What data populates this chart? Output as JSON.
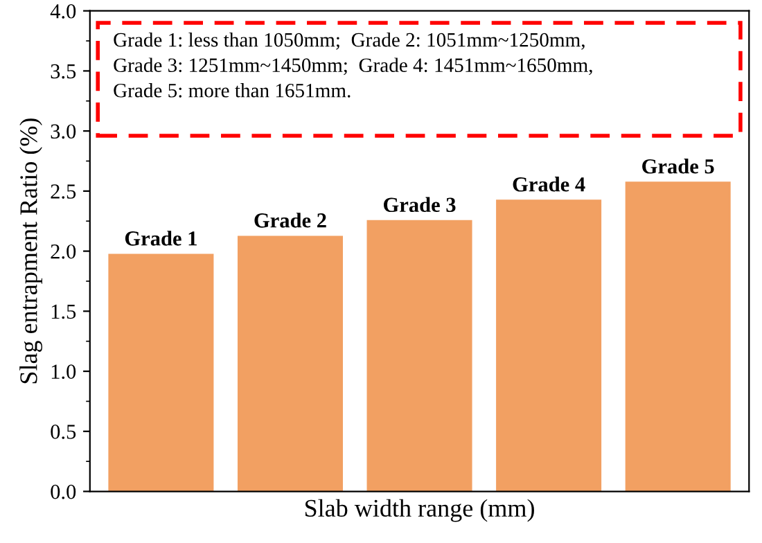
{
  "chart_data": {
    "type": "bar",
    "xlabel": "Slab width range (mm)",
    "ylabel": "Slag entrapment Ratio (%)",
    "categories": [
      "Grade 1",
      "Grade 2",
      "Grade 3",
      "Grade 4",
      "Grade 5"
    ],
    "values": [
      1.97,
      2.12,
      2.25,
      2.42,
      2.57
    ],
    "color": "#f2a062",
    "ylim": [
      0,
      4.0
    ],
    "yticks": [
      {
        "value": 0,
        "label": "0.0"
      },
      0.5,
      {
        "value": 1,
        "label": "1.0"
      },
      1.5,
      {
        "value": 2,
        "label": "2.0"
      },
      2.5,
      {
        "value": 3,
        "label": "3.0"
      },
      3.5,
      {
        "value": 4,
        "label": "4.0"
      }
    ],
    "grid": false,
    "annotations": [
      "Grade 1: less than 1050mm;  Grade 2: 1051mm~1250mm,",
      "Grade 3: 1251mm~1450mm;  Grade 4: 1451mm~1650mm,",
      "Grade 5: more than 1651mm."
    ]
  }
}
